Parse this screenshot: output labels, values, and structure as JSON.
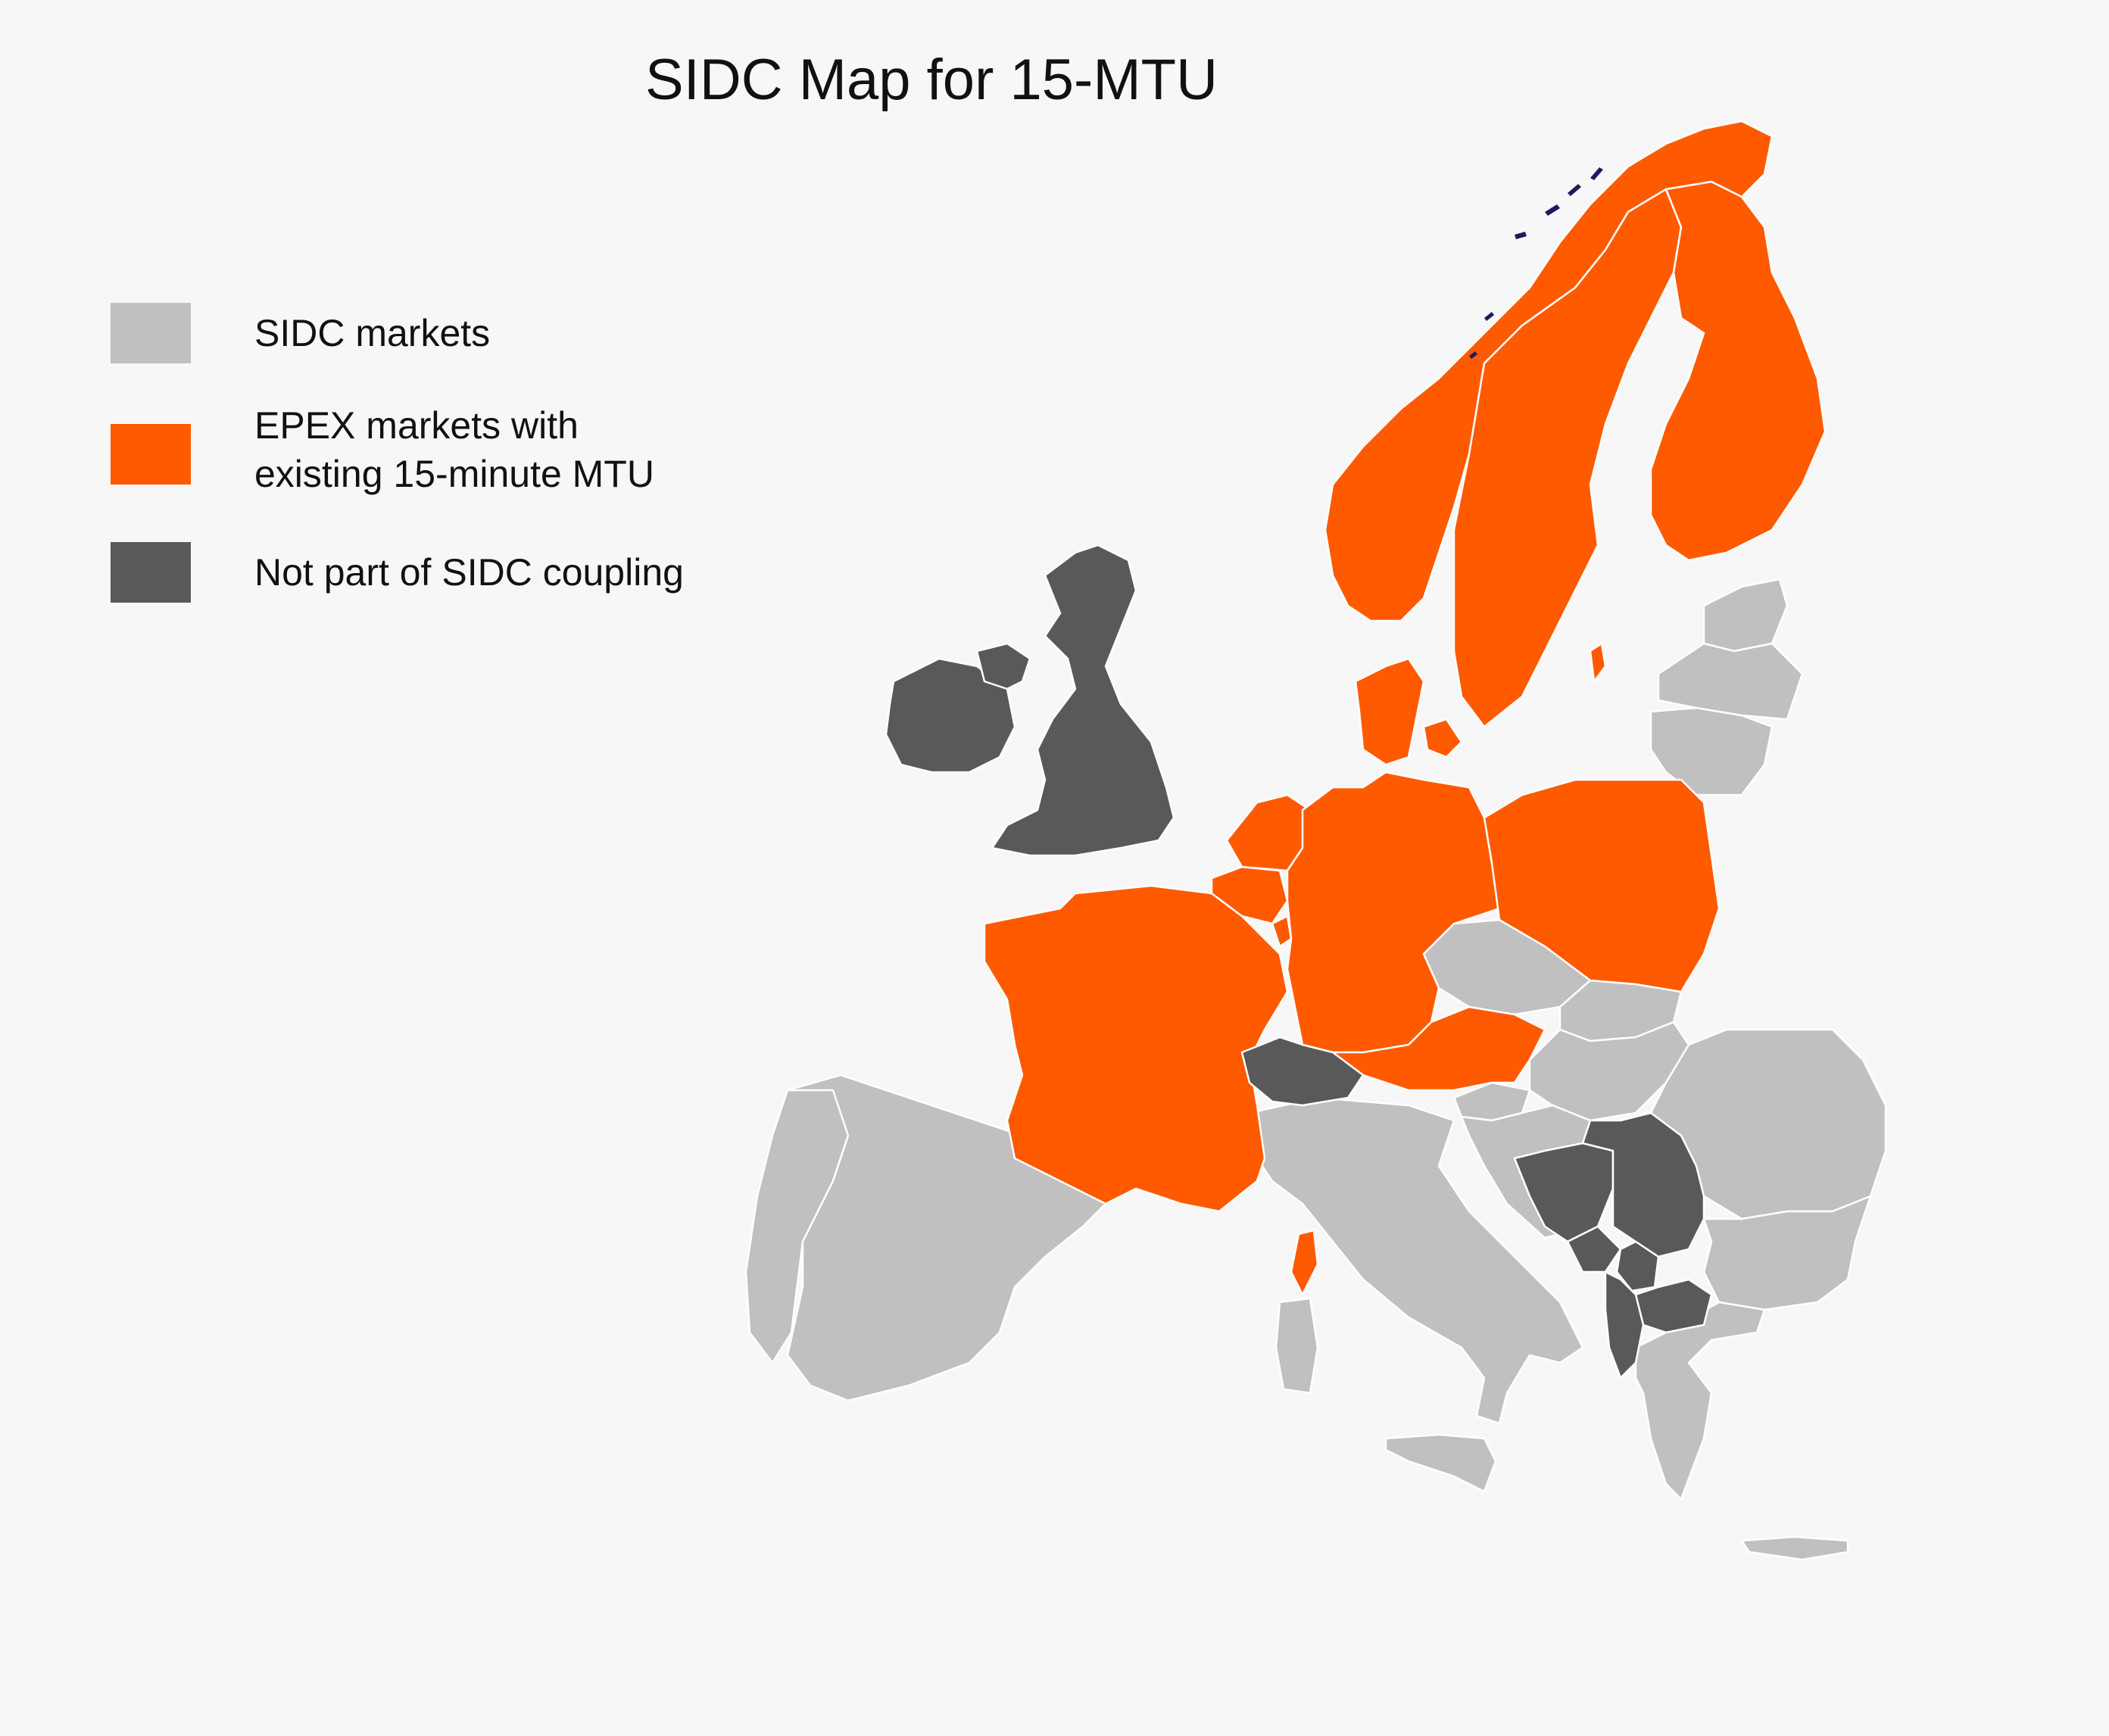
{
  "title": "SIDC Map for 15-MTU",
  "colors": {
    "background": "#f7f7f7",
    "sidc_markets": "#c0c0c0",
    "epex_15min": "#ff5a00",
    "not_sidc": "#595959",
    "border": "#ffffff",
    "island_marks": "#1f1a5e"
  },
  "legend": [
    {
      "key": "sidc_markets",
      "lines": [
        "SIDC markets"
      ]
    },
    {
      "key": "epex_15min",
      "lines": [
        "EPEX markets with",
        "existing 15-minute MTU"
      ]
    },
    {
      "key": "not_sidc",
      "lines": [
        "Not part of SIDC coupling"
      ]
    }
  ],
  "regions": {
    "sidc_markets": [
      "Spain",
      "Portugal",
      "Italy",
      "Sicily",
      "Sardinia",
      "Czech Republic",
      "Slovakia",
      "Hungary",
      "Slovenia",
      "Croatia",
      "Romania",
      "Bulgaria",
      "Greece",
      "Estonia",
      "Latvia",
      "Lithuania"
    ],
    "epex_15min": [
      "France",
      "Corsica",
      "Belgium",
      "Netherlands",
      "Luxembourg",
      "Germany",
      "Austria",
      "Poland",
      "Denmark",
      "Norway",
      "Sweden",
      "Finland"
    ],
    "not_sidc": [
      "Great Britain",
      "Ireland",
      "Northern Ireland",
      "Switzerland",
      "Bosnia and Herzegovina",
      "Serbia",
      "Montenegro",
      "Kosovo",
      "North Macedonia",
      "Albania"
    ]
  }
}
